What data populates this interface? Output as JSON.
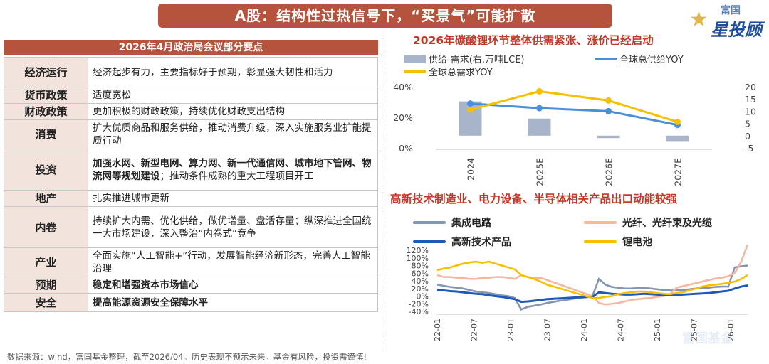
{
  "header": {
    "title": "A股：结构性过热信号下，“买景气”可能扩散"
  },
  "logo": {
    "top": "富国",
    "main": "星投顾"
  },
  "table": {
    "title": "2026年4月政治局会议部分要点",
    "rows": [
      {
        "key": "经济运行",
        "value": "经济起步有力，主要指标好于预期，彰显强大韧性和活力",
        "bold": false
      },
      {
        "key": "货币政策",
        "value": "适度宽松",
        "bold": false
      },
      {
        "key": "财政政策",
        "value": "更加积极的财政政策，持续优化财政支出结构",
        "bold": false
      },
      {
        "key": "消费",
        "value": "扩大优质商品和服务供给，推动消费升级，深入实施服务业扩能提质行动",
        "bold": false
      },
      {
        "key": "投资",
        "value_bold": "加强水网、新型电网、算力网、新一代通信网、城市地下管网、物流网等规划建设",
        "value": "；推动条件成熟的重大工程项目开工",
        "bold": "mixed"
      },
      {
        "key": "地产",
        "value": "扎实推进城市更新",
        "bold": false
      },
      {
        "key": "内卷",
        "value": "持续扩大内需、优化供给，做优增量、盘活存量；纵深推进全国统一大市场建设，深入整治“内卷式”竞争",
        "bold": false
      },
      {
        "key": "产业",
        "value": "全面实施“人工智能+”行动，发展智能经济新形态，完善人工智能治理",
        "bold": false
      },
      {
        "key": "预期",
        "value": "稳定和增强资本市场信心",
        "bold": true
      },
      {
        "key": "安全",
        "value": "提高能源资源安全保障水平",
        "bold": true
      }
    ]
  },
  "chart_data": [
    {
      "type": "bar+line",
      "title": "2026年碳酸锂环节整体供需紧张、涨价已经启动",
      "categories": [
        "2024",
        "2025E",
        "2026E",
        "2027E"
      ],
      "series": [
        {
          "name": "供给-需求(右,万吨LCE)",
          "kind": "bar",
          "axis": "right",
          "values": [
            14,
            7,
            -1,
            -2.5
          ],
          "color": "#a7b4c9"
        },
        {
          "name": "全球总供给YOY",
          "kind": "line",
          "axis": "left",
          "values": [
            0.29,
            0.26,
            0.24,
            0.15
          ],
          "color": "#4a90d9"
        },
        {
          "name": "全球总需求YOY",
          "kind": "line",
          "axis": "left",
          "values": [
            0.25,
            0.37,
            0.31,
            0.17
          ],
          "color": "#f5c000"
        }
      ],
      "ylim_left": [
        0,
        0.4
      ],
      "yticks_left": [
        "0%",
        "20%",
        "40%"
      ],
      "ylim_right": [
        -5,
        20
      ],
      "yticks_right": [
        "-5",
        "0",
        "5",
        "10",
        "15",
        "20"
      ],
      "legend": "top"
    },
    {
      "type": "line",
      "title": "高新技术制造业、电力设备、半导体相关产品出口动能较强",
      "x_ticks": [
        "22-01",
        "22-07",
        "23-01",
        "23-07",
        "24-01",
        "24-07",
        "25-01",
        "25-07",
        "26-01"
      ],
      "ylim": [
        -0.4,
        1.2
      ],
      "yticks": [
        "-40%",
        "-20%",
        "0%",
        "20%",
        "40%",
        "60%",
        "80%",
        "100%",
        "120%"
      ],
      "series": [
        {
          "name": "集成电路",
          "color": "#8496b0",
          "values": [
            0.3,
            0.27,
            0.24,
            0.22,
            0.2,
            0.16,
            0.12,
            0.1,
            0.08,
            0.05,
            0.02,
            0.0,
            -0.05,
            -0.35,
            -0.28,
            -0.25,
            -0.22,
            -0.18,
            -0.15,
            -0.12,
            -0.1,
            -0.07,
            -0.05,
            -0.03,
            0.0,
            0.45,
            0.3,
            0.24,
            0.22,
            0.2,
            0.2,
            0.21,
            0.22,
            0.2,
            0.18,
            0.16,
            0.15,
            0.15,
            0.16,
            0.18,
            0.2,
            0.22,
            0.22,
            0.24,
            0.25,
            0.25,
            0.75,
            0.78,
            0.8
          ]
        },
        {
          "name": "光纤、光纤束及光缆",
          "color": "#f4b8a0",
          "values": [
            0.55,
            0.5,
            0.5,
            0.48,
            0.48,
            0.45,
            0.45,
            0.48,
            0.48,
            0.5,
            0.5,
            0.48,
            0.45,
            0.55,
            0.5,
            0.48,
            0.48,
            0.42,
            0.36,
            0.3,
            0.24,
            0.18,
            0.12,
            0.06,
            0.0,
            -0.18,
            -0.22,
            -0.2,
            -0.18,
            -0.14,
            -0.1,
            -0.08,
            -0.06,
            -0.05,
            -0.02,
            0.0,
            0.05,
            0.22,
            0.26,
            0.3,
            0.34,
            0.38,
            0.42,
            0.46,
            0.48,
            0.52,
            0.6,
            0.9,
            1.35
          ]
        },
        {
          "name": "高新技术产品",
          "color": "#1f5ab8",
          "values": [
            0.15,
            0.15,
            0.13,
            0.12,
            0.1,
            0.08,
            0.06,
            0.05,
            0.02,
            0.0,
            -0.02,
            -0.05,
            -0.08,
            -0.15,
            -0.14,
            -0.12,
            -0.1,
            -0.08,
            -0.07,
            -0.06,
            -0.05,
            -0.04,
            -0.03,
            -0.02,
            -0.02,
            0.1,
            0.08,
            0.06,
            0.05,
            0.04,
            0.04,
            0.05,
            0.06,
            0.05,
            0.04,
            0.03,
            0.03,
            0.03,
            0.04,
            0.05,
            0.06,
            0.07,
            0.08,
            0.1,
            0.12,
            0.14,
            0.2,
            0.25,
            0.28
          ]
        },
        {
          "name": "锂电池",
          "color": "#f5c000",
          "values": [
            0.68,
            0.72,
            0.75,
            0.8,
            0.85,
            0.88,
            0.9,
            0.87,
            0.9,
            0.85,
            0.8,
            0.75,
            0.7,
            0.55,
            0.5,
            0.45,
            0.38,
            0.3,
            0.25,
            0.2,
            0.15,
            0.1,
            0.05,
            0.0,
            -0.05,
            -0.05,
            -0.02,
            0.0,
            0.05,
            0.08,
            0.1,
            0.12,
            0.12,
            0.1,
            0.08,
            0.06,
            0.05,
            0.08,
            0.1,
            0.15,
            0.2,
            0.25,
            0.28,
            0.3,
            0.32,
            0.35,
            0.38,
            0.45,
            0.55
          ]
        }
      ]
    }
  ],
  "footer": {
    "text": "数据来源：wind，富国基金整理，截至2026/04。历史表现不预示未来。基金有风险，投资需谨慎!"
  },
  "watermark": {
    "text": "富国基金"
  }
}
